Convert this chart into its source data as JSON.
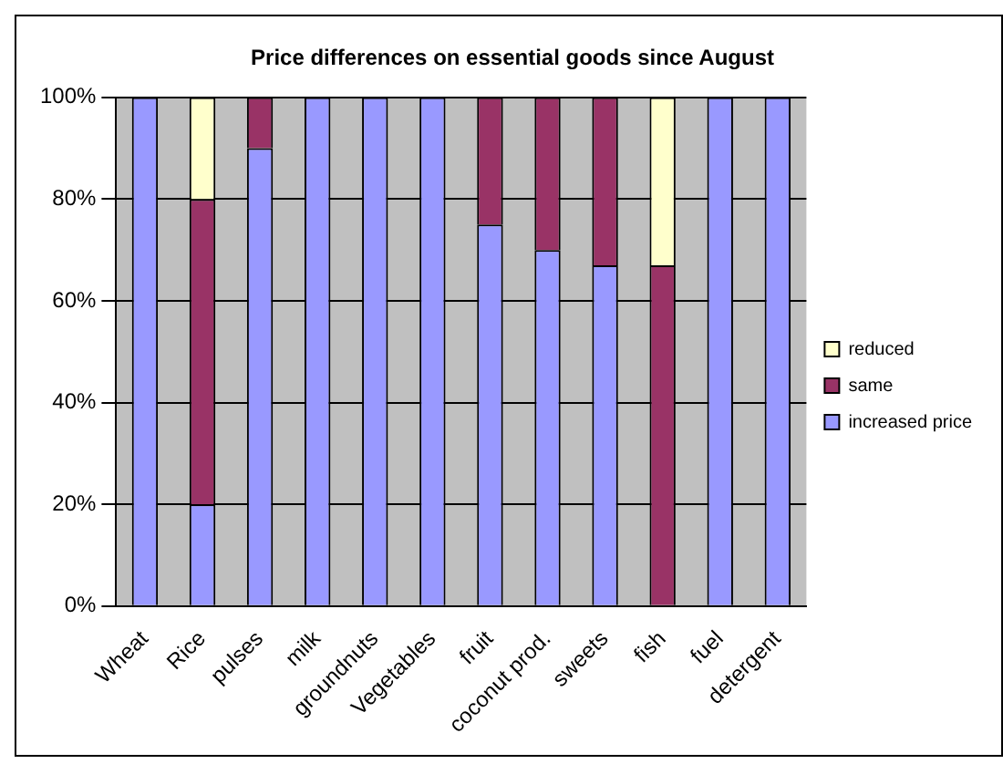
{
  "chart_data": {
    "type": "bar",
    "title": "Price differences on essential goods since August",
    "stacked": true,
    "categories": [
      "Wheat",
      "Rice",
      "pulses",
      "milk",
      "groundnuts",
      "Vegetables",
      "fruit",
      "coconut prod.",
      "sweets",
      "fish",
      "fuel",
      "detergent"
    ],
    "series": [
      {
        "name": "increased price",
        "color": "#9999ff",
        "values": [
          100,
          20,
          90,
          100,
          100,
          100,
          75,
          70,
          67,
          0,
          100,
          100
        ]
      },
      {
        "name": "same",
        "color": "#993366",
        "values": [
          0,
          60,
          10,
          0,
          0,
          0,
          25,
          30,
          33,
          67,
          0,
          0
        ]
      },
      {
        "name": "reduced",
        "color": "#ffffcc",
        "values": [
          0,
          20,
          0,
          0,
          0,
          0,
          0,
          0,
          0,
          33,
          0,
          0
        ]
      }
    ],
    "ylim": [
      0,
      100
    ],
    "yticks": [
      {
        "value": 0,
        "label": "0%"
      },
      {
        "value": 20,
        "label": "20%"
      },
      {
        "value": 40,
        "label": "40%"
      },
      {
        "value": 60,
        "label": "60%"
      },
      {
        "value": 80,
        "label": "80%"
      },
      {
        "value": 100,
        "label": "100%"
      }
    ],
    "grid": "y",
    "legend": "right"
  }
}
